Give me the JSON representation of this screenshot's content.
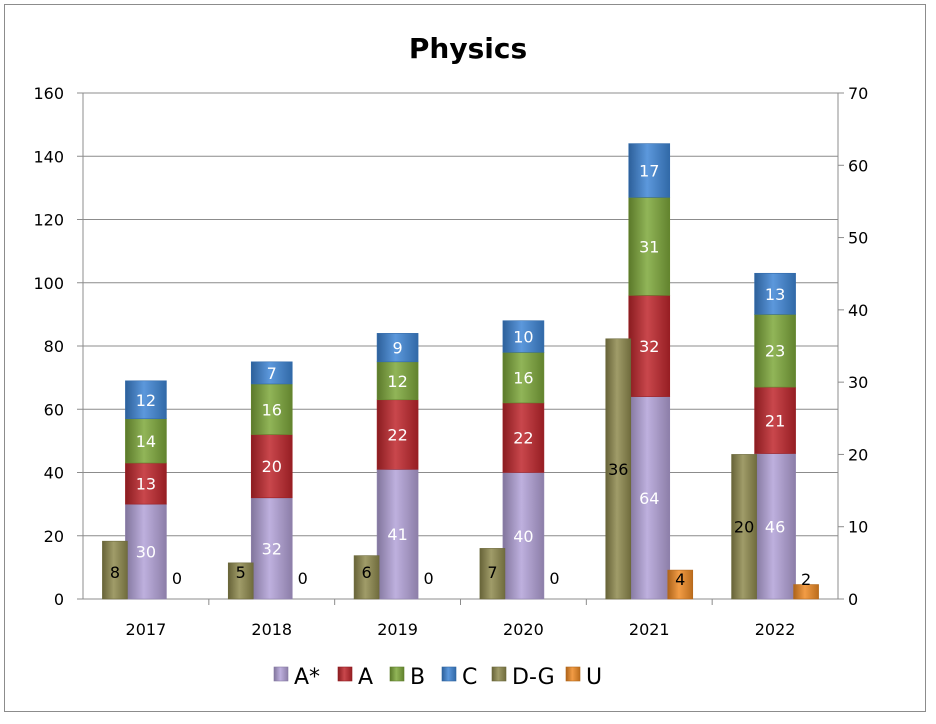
{
  "chart_data": {
    "type": "bar",
    "title": "Physics",
    "categories": [
      "2017",
      "2018",
      "2019",
      "2020",
      "2021",
      "2022"
    ],
    "left_axis": {
      "ylim": [
        0,
        160
      ],
      "ticks": [
        "0",
        "20",
        "40",
        "60",
        "80",
        "100",
        "120",
        "140",
        "160"
      ]
    },
    "right_axis": {
      "ylim": [
        0,
        70
      ],
      "ticks": [
        "0",
        "10",
        "20",
        "30",
        "40",
        "50",
        "60",
        "70"
      ]
    },
    "stacked_series": [
      {
        "name": "A*",
        "color": "#b3a2d8",
        "values": [
          30,
          32,
          41,
          40,
          64,
          46
        ]
      },
      {
        "name": "A",
        "color": "#c0272d",
        "values": [
          13,
          20,
          22,
          22,
          32,
          21
        ]
      },
      {
        "name": "B",
        "color": "#7ea83b",
        "values": [
          14,
          16,
          12,
          16,
          31,
          23
        ]
      },
      {
        "name": "C",
        "color": "#3f86d6",
        "values": [
          12,
          7,
          9,
          10,
          17,
          13
        ]
      }
    ],
    "secondary_series": [
      {
        "name": "D-G",
        "color": "#8f8a4e",
        "axis": "right",
        "position": "left",
        "values": [
          8,
          5,
          6,
          7,
          36,
          20
        ]
      },
      {
        "name": "U",
        "color": "#f08a24",
        "axis": "right",
        "position": "right",
        "values": [
          0,
          0,
          0,
          0,
          4,
          2
        ]
      }
    ],
    "legend": {
      "placement": "bottom",
      "entries": [
        "A*",
        "A",
        "B",
        "C",
        "D-G",
        "U"
      ]
    },
    "grid": true
  }
}
